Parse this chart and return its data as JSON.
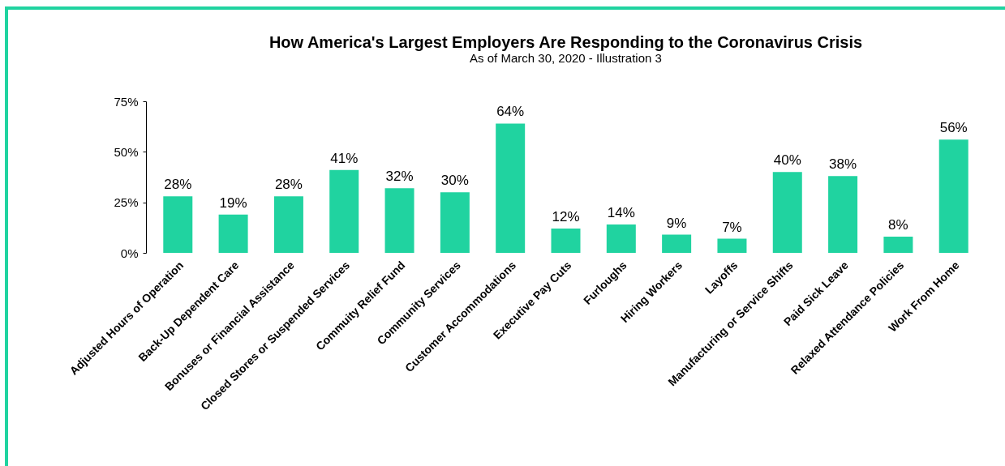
{
  "chart_data": {
    "type": "bar",
    "title": "How America's Largest Employers Are Responding to the Coronavirus Crisis",
    "subtitle": "As of March 30, 2020 - Illustration 3",
    "categories": [
      "Adjusted Hours of Operation",
      "Back-Up Dependent Care",
      "Bonuses or Financial Assistance",
      "Closed Stores or Suspended Services",
      "Commuity Relief Fund",
      "Community Services",
      "Customer Accommodations",
      "Executive Pay Cuts",
      "Furloughs",
      "Hiring Workers",
      "Layoffs",
      "Manufacturing or Service Shifts",
      "Paid Sick Leave",
      "Relaxed Attendance Policies",
      "Work From Home"
    ],
    "values": [
      28,
      19,
      28,
      41,
      32,
      30,
      64,
      12,
      14,
      9,
      7,
      40,
      38,
      8,
      56
    ],
    "value_labels": [
      "28%",
      "19%",
      "28%",
      "41%",
      "32%",
      "30%",
      "64%",
      "12%",
      "14%",
      "9%",
      "7%",
      "40%",
      "38%",
      "8%",
      "56%"
    ],
    "color": "#20d3a0",
    "ylim": [
      0,
      75
    ],
    "yticks": [
      {
        "value": 0,
        "label": "0%"
      },
      {
        "value": 25,
        "label": "25%"
      },
      {
        "value": 50,
        "label": "50%"
      },
      {
        "value": 75,
        "label": "75%"
      }
    ],
    "grid": false
  }
}
